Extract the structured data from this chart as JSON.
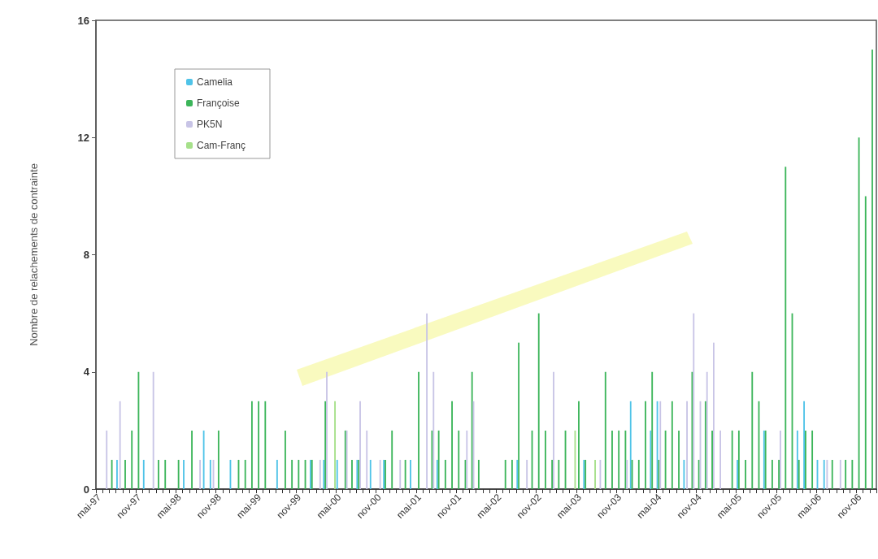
{
  "chart_data": {
    "type": "bar",
    "ylabel": "Nombre de relachements de contrainte",
    "categories": [
      "mai-97",
      null,
      null,
      null,
      null,
      null,
      "nov-97",
      null,
      null,
      null,
      null,
      null,
      "mai-98",
      null,
      null,
      null,
      null,
      null,
      "nov-98",
      null,
      null,
      null,
      null,
      null,
      "mai-99",
      null,
      null,
      null,
      null,
      null,
      "nov-99",
      null,
      null,
      null,
      null,
      null,
      "mai-00",
      null,
      null,
      null,
      null,
      null,
      "nov-00",
      null,
      null,
      null,
      null,
      null,
      "mai-01",
      null,
      null,
      null,
      null,
      null,
      "nov-01",
      null,
      null,
      null,
      null,
      null,
      "mai-02",
      null,
      null,
      null,
      null,
      null,
      "nov-02",
      null,
      null,
      null,
      null,
      null,
      "mai-03",
      null,
      null,
      null,
      null,
      null,
      "nov-03",
      null,
      null,
      null,
      null,
      null,
      "mai-04",
      null,
      null,
      null,
      null,
      null,
      "nov-04",
      null,
      null,
      null,
      null,
      null,
      "mai-05",
      null,
      null,
      null,
      null,
      null,
      "nov-05",
      null,
      null,
      null,
      null,
      null,
      "mai-06",
      null,
      null,
      null,
      null,
      null,
      "nov-06",
      null,
      null
    ],
    "series": [
      {
        "name": "Camelia",
        "color": "#4fc3e8",
        "values": [
          null,
          null,
          null,
          1,
          null,
          null,
          null,
          1,
          null,
          null,
          null,
          null,
          null,
          1,
          null,
          null,
          2,
          1,
          null,
          null,
          1,
          null,
          null,
          null,
          null,
          null,
          null,
          1,
          null,
          null,
          null,
          null,
          1,
          null,
          1,
          null,
          1,
          null,
          null,
          1,
          null,
          1,
          null,
          1,
          null,
          null,
          null,
          1,
          null,
          null,
          null,
          1,
          null,
          null,
          null,
          null,
          null,
          null,
          null,
          null,
          null,
          null,
          null,
          1,
          null,
          null,
          null,
          null,
          null,
          null,
          null,
          null,
          null,
          1,
          null,
          null,
          null,
          null,
          null,
          null,
          3,
          null,
          null,
          2,
          3,
          null,
          null,
          null,
          1,
          null,
          null,
          null,
          null,
          null,
          null,
          null,
          1,
          null,
          null,
          null,
          2,
          null,
          null,
          null,
          null,
          2,
          3,
          null,
          1,
          1,
          null,
          null,
          null,
          null,
          null,
          null,
          null
        ]
      },
      {
        "name": "Françoise",
        "color": "#3cb55a",
        "values": [
          null,
          null,
          1,
          null,
          1,
          2,
          4,
          null,
          null,
          1,
          1,
          null,
          1,
          null,
          2,
          null,
          null,
          null,
          2,
          null,
          null,
          1,
          1,
          3,
          3,
          3,
          null,
          null,
          2,
          1,
          1,
          1,
          1,
          null,
          3,
          null,
          null,
          2,
          1,
          1,
          null,
          null,
          null,
          1,
          2,
          null,
          1,
          null,
          4,
          null,
          2,
          2,
          1,
          3,
          2,
          1,
          4,
          1,
          null,
          null,
          null,
          1,
          1,
          5,
          null,
          2,
          6,
          2,
          1,
          1,
          2,
          null,
          3,
          1,
          null,
          null,
          4,
          2,
          2,
          2,
          1,
          1,
          3,
          4,
          1,
          2,
          3,
          2,
          null,
          4,
          1,
          3,
          2,
          null,
          null,
          2,
          2,
          1,
          4,
          3,
          2,
          1,
          1,
          11,
          6,
          1,
          2,
          2,
          null,
          null,
          1,
          null,
          1,
          1,
          12,
          10,
          15
        ]
      },
      {
        "name": "PK5N",
        "color": "#c8c4e6",
        "values": [
          null,
          2,
          null,
          3,
          null,
          null,
          null,
          null,
          4,
          null,
          null,
          null,
          null,
          null,
          null,
          1,
          null,
          1,
          null,
          null,
          null,
          null,
          null,
          null,
          null,
          null,
          null,
          null,
          null,
          null,
          null,
          null,
          null,
          1,
          4,
          null,
          null,
          2,
          null,
          3,
          2,
          null,
          1,
          null,
          null,
          1,
          null,
          null,
          null,
          6,
          4,
          null,
          null,
          null,
          null,
          2,
          3,
          null,
          null,
          null,
          null,
          null,
          null,
          null,
          1,
          null,
          null,
          null,
          4,
          null,
          null,
          null,
          null,
          null,
          null,
          1,
          null,
          null,
          null,
          1,
          null,
          null,
          null,
          null,
          3,
          null,
          null,
          null,
          3,
          6,
          3,
          4,
          5,
          2,
          null,
          null,
          null,
          null,
          null,
          null,
          null,
          null,
          2,
          null,
          null,
          null,
          null,
          null,
          null,
          1,
          null,
          1,
          null,
          null,
          null,
          null,
          null
        ]
      },
      {
        "name": "Cam-Franç",
        "color": "#a6e08a",
        "values": [
          null,
          null,
          null,
          null,
          null,
          null,
          null,
          null,
          null,
          null,
          null,
          null,
          null,
          null,
          null,
          null,
          null,
          null,
          null,
          null,
          null,
          null,
          null,
          null,
          null,
          null,
          null,
          null,
          null,
          null,
          null,
          null,
          null,
          null,
          null,
          3,
          null,
          null,
          null,
          null,
          null,
          null,
          null,
          null,
          null,
          null,
          null,
          null,
          null,
          null,
          null,
          null,
          null,
          null,
          null,
          null,
          null,
          null,
          null,
          null,
          null,
          null,
          null,
          null,
          null,
          null,
          null,
          null,
          null,
          null,
          null,
          2,
          null,
          null,
          1,
          null,
          null,
          null,
          null,
          null,
          null,
          null,
          null,
          null,
          null,
          null,
          null,
          null,
          null,
          null,
          null,
          null,
          null,
          null,
          null,
          null,
          null,
          null,
          null,
          null,
          null,
          null,
          null,
          null,
          null,
          null,
          null,
          null,
          null,
          null,
          null,
          null,
          null,
          null,
          null,
          null,
          null
        ]
      }
    ],
    "ylim": [
      0,
      16
    ],
    "yticks": [
      0,
      4,
      8,
      12,
      16
    ],
    "grid": false,
    "legend": "top left"
  }
}
